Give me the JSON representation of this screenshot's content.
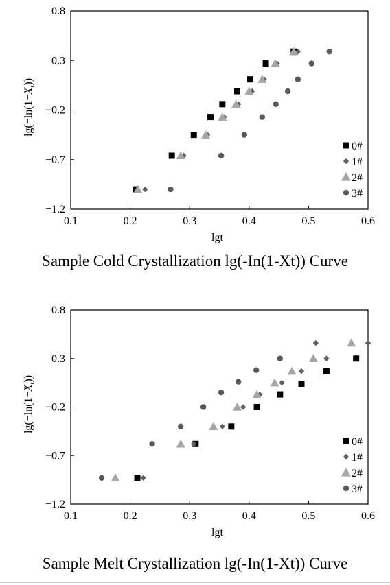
{
  "chart_data": [
    {
      "type": "scatter",
      "caption": "Sample Cold Crystallization lg(-In(1-Xt)) Curve",
      "xlabel": "lgt",
      "ylabel_parts": [
        "lg(−ln(1−",
        "X",
        "t",
        "))"
      ],
      "xlim": [
        0.1,
        0.6
      ],
      "ylim": [
        -1.2,
        0.8
      ],
      "xticks": [
        "0.1",
        "0.2",
        "0.3",
        "0.4",
        "0.5",
        "0.6"
      ],
      "yticks": [
        "−1.2",
        "−0.7",
        "−0.2",
        "0.3",
        "0.8"
      ],
      "xtick_values": [
        0.1,
        0.2,
        0.3,
        0.4,
        0.5,
        0.6
      ],
      "ytick_values": [
        -1.2,
        -0.7,
        -0.2,
        0.3,
        0.8
      ],
      "legend_position": "bottom-right",
      "series": [
        {
          "name": "0#",
          "marker": "square",
          "color": "#000000",
          "points": [
            [
              0.21,
              -1.0
            ],
            [
              0.27,
              -0.66
            ],
            [
              0.307,
              -0.45
            ],
            [
              0.335,
              -0.27
            ],
            [
              0.355,
              -0.14
            ],
            [
              0.38,
              -0.01
            ],
            [
              0.402,
              0.11
            ],
            [
              0.428,
              0.27
            ],
            [
              0.475,
              0.39
            ]
          ]
        },
        {
          "name": "1#",
          "marker": "diamond",
          "color": "#606060",
          "points": [
            [
              0.225,
              -1.0
            ],
            [
              0.29,
              -0.66
            ],
            [
              0.33,
              -0.45
            ],
            [
              0.358,
              -0.27
            ],
            [
              0.382,
              -0.14
            ],
            [
              0.405,
              -0.01
            ],
            [
              0.425,
              0.11
            ],
            [
              0.447,
              0.27
            ],
            [
              0.482,
              0.39
            ]
          ]
        },
        {
          "name": "2#",
          "marker": "triangle",
          "color": "#a6a6a6",
          "points": [
            [
              0.213,
              -1.0
            ],
            [
              0.285,
              -0.66
            ],
            [
              0.327,
              -0.45
            ],
            [
              0.355,
              -0.27
            ],
            [
              0.378,
              -0.14
            ],
            [
              0.4,
              -0.01
            ],
            [
              0.422,
              0.11
            ],
            [
              0.444,
              0.27
            ],
            [
              0.475,
              0.39
            ]
          ]
        },
        {
          "name": "3#",
          "marker": "circle",
          "color": "#595959",
          "points": [
            [
              0.268,
              -1.0
            ],
            [
              0.353,
              -0.66
            ],
            [
              0.392,
              -0.45
            ],
            [
              0.422,
              -0.27
            ],
            [
              0.445,
              -0.14
            ],
            [
              0.465,
              -0.01
            ],
            [
              0.482,
              0.11
            ],
            [
              0.505,
              0.27
            ],
            [
              0.535,
              0.39
            ]
          ]
        }
      ]
    },
    {
      "type": "scatter",
      "caption": "Sample Melt Crystallization lg(-In(1-Xt)) Curve",
      "xlabel": "lgt",
      "ylabel_parts": [
        "lg(−ln(1−",
        "X",
        "t",
        "))"
      ],
      "xlim": [
        0.1,
        0.6
      ],
      "ylim": [
        -1.2,
        0.8
      ],
      "xticks": [
        "0.1",
        "0.2",
        "0.3",
        "0.4",
        "0.5",
        "0.6"
      ],
      "yticks": [
        "−1.2",
        "−0.7",
        "−0.2",
        "0.3",
        "0.8"
      ],
      "xtick_values": [
        0.1,
        0.2,
        0.3,
        0.4,
        0.5,
        0.6
      ],
      "ytick_values": [
        -1.2,
        -0.7,
        -0.2,
        0.3,
        0.8
      ],
      "legend_position": "bottom-right",
      "series": [
        {
          "name": "0#",
          "marker": "square",
          "color": "#000000",
          "points": [
            [
              0.212,
              -0.93
            ],
            [
              0.31,
              -0.58
            ],
            [
              0.37,
              -0.4
            ],
            [
              0.413,
              -0.2
            ],
            [
              0.452,
              -0.07
            ],
            [
              0.488,
              0.04
            ],
            [
              0.53,
              0.17
            ],
            [
              0.58,
              0.3
            ]
          ]
        },
        {
          "name": "1#",
          "marker": "diamond",
          "color": "#606060",
          "points": [
            [
              0.222,
              -0.93
            ],
            [
              0.307,
              -0.58
            ],
            [
              0.355,
              -0.4
            ],
            [
              0.39,
              -0.2
            ],
            [
              0.418,
              -0.07
            ],
            [
              0.455,
              0.05
            ],
            [
              0.488,
              0.17
            ],
            [
              0.53,
              0.3
            ],
            [
              0.512,
              0.46
            ],
            [
              0.6,
              0.46
            ]
          ]
        },
        {
          "name": "2#",
          "marker": "triangle",
          "color": "#a6a6a6",
          "points": [
            [
              0.175,
              -0.93
            ],
            [
              0.285,
              -0.58
            ],
            [
              0.34,
              -0.4
            ],
            [
              0.38,
              -0.2
            ],
            [
              0.413,
              -0.07
            ],
            [
              0.443,
              0.05
            ],
            [
              0.472,
              0.17
            ],
            [
              0.508,
              0.3
            ],
            [
              0.572,
              0.46
            ]
          ]
        },
        {
          "name": "3#",
          "marker": "circle",
          "color": "#595959",
          "points": [
            [
              0.152,
              -0.93
            ],
            [
              0.237,
              -0.58
            ],
            [
              0.285,
              -0.4
            ],
            [
              0.323,
              -0.2
            ],
            [
              0.353,
              -0.05
            ],
            [
              0.382,
              0.06
            ],
            [
              0.412,
              0.18
            ],
            [
              0.452,
              0.3
            ]
          ]
        }
      ]
    }
  ]
}
